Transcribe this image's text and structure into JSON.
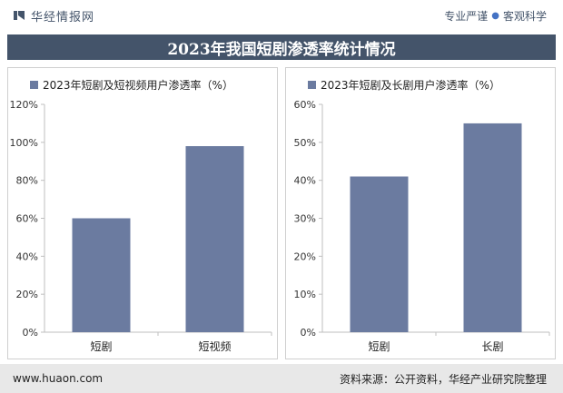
{
  "header": {
    "brand": "华经情报网",
    "slogan_left": "专业严谨",
    "slogan_dot": "●",
    "slogan_right": "客观科学"
  },
  "title": "2023年我国短剧渗透率统计情况",
  "footer": {
    "website": "www.huaon.com",
    "source": "资料来源：公开资料，华经产业研究院整理"
  },
  "colors": {
    "bar": "#6b7ba0",
    "title_bg": "#44546a"
  },
  "chart_data": [
    {
      "type": "bar",
      "legend": "2023年短剧及短视频用户渗透率（%）",
      "categories": [
        "短剧",
        "短视频"
      ],
      "values": [
        60,
        98
      ],
      "ylim": [
        0,
        120
      ],
      "yticks": [
        0,
        20,
        40,
        60,
        80,
        100,
        120
      ],
      "ytick_labels": [
        "0%",
        "20%",
        "40%",
        "60%",
        "80%",
        "100%",
        "120%"
      ],
      "grid": false
    },
    {
      "type": "bar",
      "legend": "2023年短剧及长剧用户渗透率（%）",
      "categories": [
        "短剧",
        "长剧"
      ],
      "values": [
        41,
        55
      ],
      "ylim": [
        0,
        60
      ],
      "yticks": [
        0,
        10,
        20,
        30,
        40,
        50,
        60
      ],
      "ytick_labels": [
        "0%",
        "10%",
        "20%",
        "30%",
        "40%",
        "50%",
        "60%"
      ],
      "grid": false
    }
  ]
}
